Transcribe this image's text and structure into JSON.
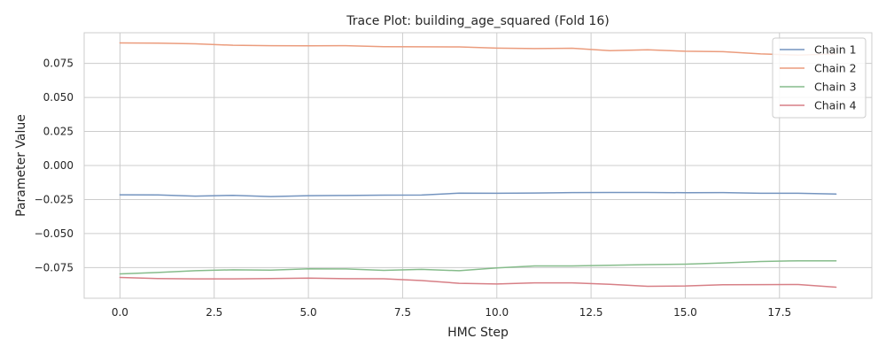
{
  "chart_data": {
    "type": "line",
    "title": "Trace Plot: building_age_squared (Fold 16)",
    "xlabel": "HMC Step",
    "ylabel": "Parameter Value",
    "xlim": [
      -0.95,
      19.95
    ],
    "ylim": [
      -0.0975,
      0.0975
    ],
    "x_ticks": [
      0,
      2.5,
      5,
      7.5,
      10,
      12.5,
      15,
      17.5
    ],
    "x_tick_labels": [
      "0.0",
      "2.5",
      "5.0",
      "7.5",
      "10.0",
      "12.5",
      "15.0",
      "17.5"
    ],
    "y_ticks": [
      -0.075,
      -0.05,
      -0.025,
      0,
      0.025,
      0.05,
      0.075
    ],
    "y_tick_labels": [
      "−0.075",
      "−0.050",
      "−0.025",
      "0.000",
      "0.025",
      "0.050",
      "0.075"
    ],
    "grid": true,
    "legend_position": "top-right",
    "x": [
      0,
      1,
      2,
      3,
      4,
      5,
      6,
      7,
      8,
      9,
      10,
      11,
      12,
      13,
      14,
      15,
      16,
      17,
      18,
      19
    ],
    "series": [
      {
        "name": "Chain 1",
        "color": "#7494bf",
        "values": [
          -0.0215,
          -0.0216,
          -0.0225,
          -0.0219,
          -0.0228,
          -0.0222,
          -0.022,
          -0.0218,
          -0.0217,
          -0.0203,
          -0.0204,
          -0.0202,
          -0.0199,
          -0.0198,
          -0.0198,
          -0.02,
          -0.0199,
          -0.0204,
          -0.0204,
          -0.021
        ]
      },
      {
        "name": "Chain 2",
        "color": "#eb9c7d",
        "values": [
          0.09,
          0.0899,
          0.0894,
          0.0883,
          0.088,
          0.0879,
          0.088,
          0.0873,
          0.0872,
          0.0871,
          0.0862,
          0.0859,
          0.0861,
          0.0843,
          0.085,
          0.0839,
          0.0836,
          0.082,
          0.0811,
          0.082
        ]
      },
      {
        "name": "Chain 3",
        "color": "#86bc8b",
        "values": [
          -0.0796,
          -0.0786,
          -0.0773,
          -0.0766,
          -0.0769,
          -0.0759,
          -0.076,
          -0.077,
          -0.0763,
          -0.0773,
          -0.0752,
          -0.0738,
          -0.0738,
          -0.0733,
          -0.0728,
          -0.0725,
          -0.0716,
          -0.0705,
          -0.07,
          -0.07
        ]
      },
      {
        "name": "Chain 4",
        "color": "#d77f86",
        "values": [
          -0.0822,
          -0.083,
          -0.0833,
          -0.0833,
          -0.083,
          -0.0827,
          -0.0831,
          -0.0832,
          -0.0845,
          -0.0865,
          -0.087,
          -0.0862,
          -0.0862,
          -0.0873,
          -0.0887,
          -0.0885,
          -0.0876,
          -0.0875,
          -0.0874,
          -0.0894
        ]
      }
    ]
  }
}
